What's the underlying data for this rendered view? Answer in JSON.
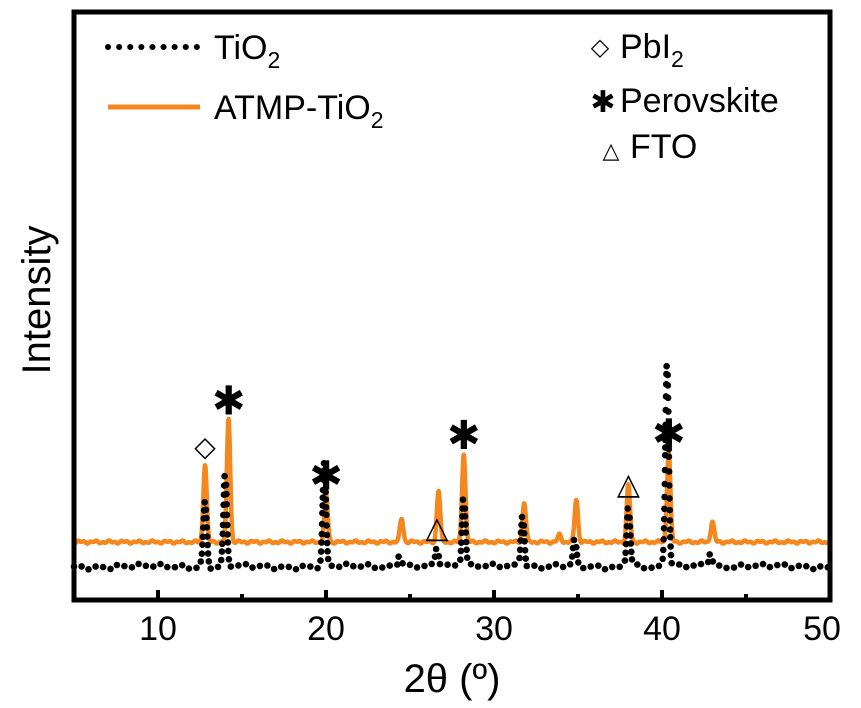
{
  "colors": {
    "tio2": "#000000",
    "atmp_tio2": "#f5871f",
    "axis": "#000000",
    "background": "#ffffff"
  },
  "chart_data": {
    "type": "line",
    "title": "",
    "xlabel": "2θ (º)",
    "ylabel": "Intensity",
    "xlim": [
      5,
      50
    ],
    "xticks": [
      10,
      20,
      30,
      40,
      50
    ],
    "yticks": [],
    "grid": false,
    "legend_placement": "top-left",
    "series": [
      {
        "name": "ATMP-TiO2",
        "name_main": "ATMP-TiO",
        "name_sub": "2",
        "style": "solid",
        "color": "#f5871f",
        "baseline": 0.8,
        "peaks": [
          {
            "x": 12.8,
            "h": 2.23
          },
          {
            "x": 14.2,
            "h": 3.53
          },
          {
            "x": 20.0,
            "h": 1.38
          },
          {
            "x": 24.5,
            "h": 0.67
          },
          {
            "x": 26.7,
            "h": 1.47
          },
          {
            "x": 28.2,
            "h": 2.54
          },
          {
            "x": 31.8,
            "h": 1.12
          },
          {
            "x": 33.9,
            "h": 0.2
          },
          {
            "x": 34.9,
            "h": 1.21
          },
          {
            "x": 38.0,
            "h": 1.62
          },
          {
            "x": 40.4,
            "h": 2.58
          },
          {
            "x": 43.0,
            "h": 0.58
          }
        ]
      },
      {
        "name": "TiO2",
        "name_main": "TiO",
        "name_sub": "2",
        "style": "dotted",
        "color": "#000000",
        "baseline": 0.1,
        "peaks": [
          {
            "x": 12.8,
            "h": 1.85
          },
          {
            "x": 14.0,
            "h": 2.7
          },
          {
            "x": 19.9,
            "h": 2.95
          },
          {
            "x": 24.4,
            "h": 0.45
          },
          {
            "x": 26.6,
            "h": 0.6
          },
          {
            "x": 28.2,
            "h": 2.15
          },
          {
            "x": 31.7,
            "h": 1.55
          },
          {
            "x": 33.9,
            "h": 0.15
          },
          {
            "x": 34.8,
            "h": 0.8
          },
          {
            "x": 38.0,
            "h": 1.85
          },
          {
            "x": 40.3,
            "h": 6.0
          },
          {
            "x": 42.9,
            "h": 0.45
          }
        ]
      }
    ],
    "phase_legend": [
      {
        "marker": "diamond",
        "glyph": "◇",
        "label_main": "PbI",
        "label_sub": "2"
      },
      {
        "marker": "asterisk",
        "glyph": "✱",
        "label_main": "Perovskite",
        "label_sub": ""
      },
      {
        "marker": "triangle",
        "glyph": "△",
        "label_main": "FTO",
        "label_sub": ""
      }
    ],
    "annotations": [
      {
        "marker": "diamond",
        "glyph": "◇",
        "x": 12.8,
        "series": "ATMP-TiO2"
      },
      {
        "marker": "asterisk",
        "glyph": "✱",
        "x": 14.2,
        "series": "ATMP-TiO2"
      },
      {
        "marker": "asterisk",
        "glyph": "✱",
        "x": 20.0,
        "series": "ATMP-TiO2"
      },
      {
        "marker": "asterisk",
        "glyph": "✱",
        "x": 28.2,
        "series": "ATMP-TiO2"
      },
      {
        "marker": "asterisk",
        "glyph": "✱",
        "x": 40.4,
        "series": "ATMP-TiO2"
      },
      {
        "marker": "triangle",
        "glyph": "△",
        "x": 26.6,
        "series": "TiO2"
      },
      {
        "marker": "triangle",
        "glyph": "△",
        "x": 38.0,
        "series": "TiO2"
      }
    ]
  }
}
